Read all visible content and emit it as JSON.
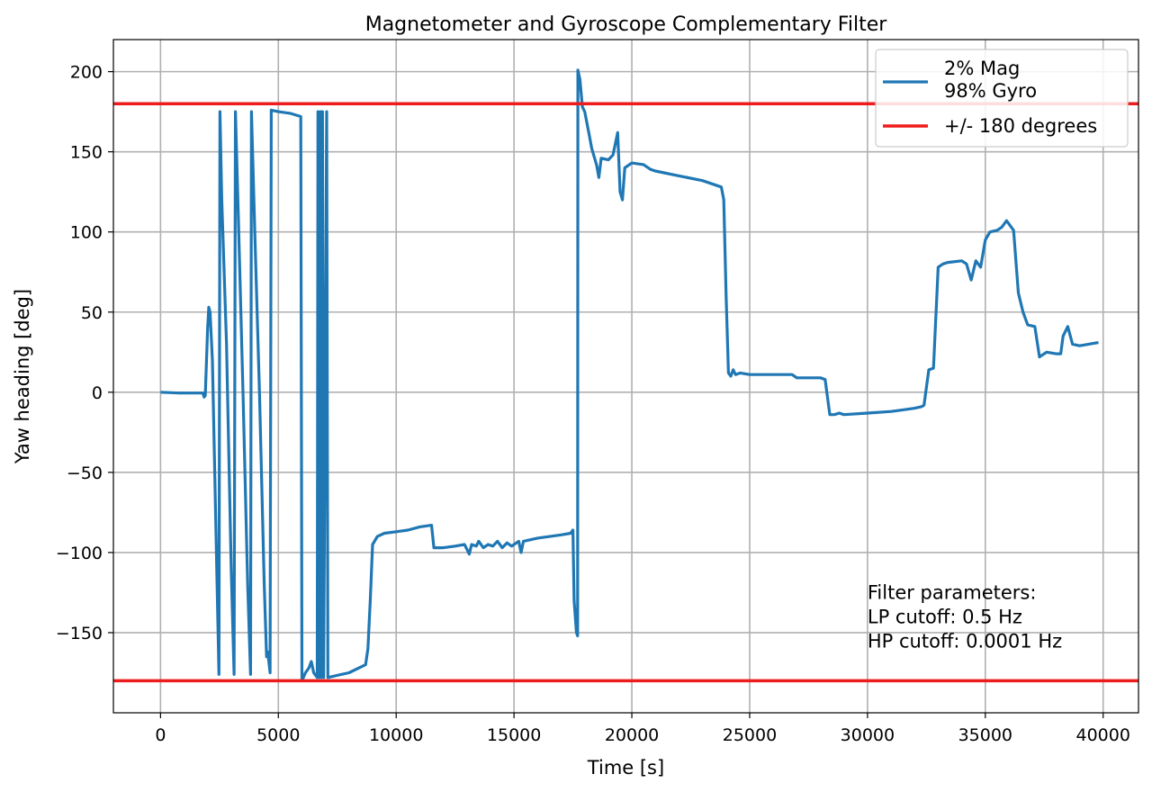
{
  "chart_data": {
    "type": "line",
    "title": "Magnetometer and Gyroscope Complementary Filter",
    "xlabel": "Time [s]",
    "ylabel": "Yaw heading [deg]",
    "xlim": [
      -2000,
      41500
    ],
    "ylim": [
      -200,
      220
    ],
    "xticks": [
      0,
      5000,
      10000,
      15000,
      20000,
      25000,
      30000,
      35000,
      40000
    ],
    "xtick_labels": [
      "0",
      "5000",
      "10000",
      "15000",
      "20000",
      "25000",
      "30000",
      "35000",
      "40000"
    ],
    "yticks": [
      -150,
      -100,
      -50,
      0,
      50,
      100,
      150,
      200
    ],
    "ytick_labels": [
      "−150",
      "−100",
      "−50",
      "0",
      "50",
      "100",
      "150",
      "200"
    ],
    "grid": true,
    "legend_position": "top-right",
    "series": [
      {
        "name": "2% Mag\n98% Gyro",
        "color": "#1f77b4",
        "points": [
          [
            0,
            0
          ],
          [
            800,
            -0.5
          ],
          [
            1500,
            -0.5
          ],
          [
            1800,
            -0.5
          ],
          [
            1850,
            -3
          ],
          [
            1900,
            -2
          ],
          [
            2000,
            40
          ],
          [
            2050,
            53
          ],
          [
            2100,
            50
          ],
          [
            2200,
            20
          ],
          [
            2300,
            -50
          ],
          [
            2400,
            -120
          ],
          [
            2480,
            -176
          ],
          [
            2520,
            175
          ],
          [
            2600,
            120
          ],
          [
            2800,
            30
          ],
          [
            3000,
            -110
          ],
          [
            3120,
            -176
          ],
          [
            3180,
            175
          ],
          [
            3300,
            110
          ],
          [
            3500,
            0
          ],
          [
            3700,
            -120
          ],
          [
            3820,
            -176
          ],
          [
            3860,
            175
          ],
          [
            4000,
            100
          ],
          [
            4200,
            0
          ],
          [
            4400,
            -120
          ],
          [
            4500,
            -165
          ],
          [
            4550,
            -162
          ],
          [
            4650,
            -175
          ],
          [
            4700,
            176
          ],
          [
            5000,
            175
          ],
          [
            5500,
            174
          ],
          [
            5950,
            172
          ],
          [
            6000,
            -180
          ],
          [
            6150,
            -175
          ],
          [
            6300,
            -172
          ],
          [
            6400,
            -168
          ],
          [
            6500,
            -175
          ],
          [
            6650,
            -178
          ],
          [
            6680,
            175
          ],
          [
            6730,
            -178
          ],
          [
            6780,
            175
          ],
          [
            6830,
            -178
          ],
          [
            6870,
            175
          ],
          [
            6920,
            -178
          ],
          [
            7050,
            175
          ],
          [
            7100,
            -178
          ],
          [
            7400,
            -177
          ],
          [
            8000,
            -175
          ],
          [
            8700,
            -170
          ],
          [
            8800,
            -160
          ],
          [
            8900,
            -130
          ],
          [
            9000,
            -95
          ],
          [
            9200,
            -90
          ],
          [
            9500,
            -88
          ],
          [
            10000,
            -87
          ],
          [
            10500,
            -86
          ],
          [
            11000,
            -84
          ],
          [
            11500,
            -83
          ],
          [
            11600,
            -97
          ],
          [
            12000,
            -97
          ],
          [
            12500,
            -96
          ],
          [
            12900,
            -95
          ],
          [
            13000,
            -98
          ],
          [
            13100,
            -101
          ],
          [
            13200,
            -95
          ],
          [
            13400,
            -96
          ],
          [
            13500,
            -93
          ],
          [
            13700,
            -97
          ],
          [
            13900,
            -95
          ],
          [
            14100,
            -96
          ],
          [
            14300,
            -93
          ],
          [
            14500,
            -97
          ],
          [
            14700,
            -94
          ],
          [
            14900,
            -96
          ],
          [
            15100,
            -94
          ],
          [
            15200,
            -93
          ],
          [
            15300,
            -100
          ],
          [
            15400,
            -93
          ],
          [
            16000,
            -91
          ],
          [
            17000,
            -89
          ],
          [
            17400,
            -88
          ],
          [
            17500,
            -86
          ],
          [
            17550,
            -130
          ],
          [
            17650,
            -150
          ],
          [
            17700,
            -152
          ],
          [
            17710,
            201
          ],
          [
            17800,
            195
          ],
          [
            17900,
            178
          ],
          [
            18000,
            175
          ],
          [
            18200,
            160
          ],
          [
            18300,
            152
          ],
          [
            18500,
            142
          ],
          [
            18600,
            134
          ],
          [
            18700,
            146
          ],
          [
            19000,
            145
          ],
          [
            19200,
            148
          ],
          [
            19400,
            162
          ],
          [
            19500,
            125
          ],
          [
            19600,
            120
          ],
          [
            19700,
            140
          ],
          [
            20000,
            143
          ],
          [
            20500,
            142
          ],
          [
            20800,
            139
          ],
          [
            21000,
            138
          ],
          [
            22000,
            135
          ],
          [
            23000,
            132
          ],
          [
            23800,
            128
          ],
          [
            23900,
            120
          ],
          [
            24000,
            60
          ],
          [
            24100,
            12
          ],
          [
            24200,
            10
          ],
          [
            24300,
            14
          ],
          [
            24400,
            11
          ],
          [
            24600,
            12
          ],
          [
            25000,
            11
          ],
          [
            26000,
            11
          ],
          [
            26800,
            11
          ],
          [
            27000,
            9
          ],
          [
            28000,
            9
          ],
          [
            28200,
            8
          ],
          [
            28400,
            -14
          ],
          [
            28600,
            -14
          ],
          [
            28800,
            -13
          ],
          [
            29000,
            -14
          ],
          [
            30000,
            -13
          ],
          [
            31000,
            -12
          ],
          [
            31500,
            -11
          ],
          [
            32000,
            -10
          ],
          [
            32300,
            -9
          ],
          [
            32400,
            -8
          ],
          [
            32600,
            14
          ],
          [
            32800,
            15
          ],
          [
            33000,
            78
          ],
          [
            33200,
            80
          ],
          [
            33400,
            81
          ],
          [
            34000,
            82
          ],
          [
            34200,
            80
          ],
          [
            34400,
            70
          ],
          [
            34600,
            82
          ],
          [
            34800,
            78
          ],
          [
            35000,
            95
          ],
          [
            35200,
            100
          ],
          [
            35500,
            101
          ],
          [
            35700,
            103
          ],
          [
            35900,
            107
          ],
          [
            36200,
            101
          ],
          [
            36400,
            62
          ],
          [
            36600,
            50
          ],
          [
            36800,
            42
          ],
          [
            37100,
            41
          ],
          [
            37300,
            22
          ],
          [
            37600,
            25
          ],
          [
            38000,
            24
          ],
          [
            38200,
            24
          ],
          [
            38300,
            35
          ],
          [
            38500,
            41
          ],
          [
            38700,
            30
          ],
          [
            39000,
            29
          ],
          [
            39800,
            31
          ]
        ]
      },
      {
        "name": "+/- 180 degrees",
        "color": "#ee1c1c",
        "hlines": [
          180,
          -180
        ]
      }
    ],
    "annotation": {
      "lines": [
        "Filter parameters:",
        "LP cutoff: 0.5 Hz",
        "HP cutoff: 0.0001 Hz"
      ],
      "x": 30000,
      "y": -125
    }
  }
}
